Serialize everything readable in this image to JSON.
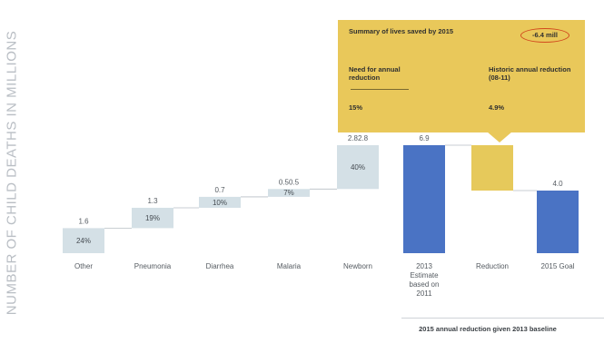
{
  "axis": {
    "ylabel": "NUMBER OF CHILD DEATHS IN MILLIONS"
  },
  "summary": {
    "title": "Summary of lives saved by 2015",
    "total": "-6.4 mill",
    "need_label": "Need for annual reduction",
    "need_value": "15%",
    "historic_label": "Historic annual reduction (08-11)",
    "historic_value": "4.9%"
  },
  "footer": {
    "baseline_note": "2015 annual reduction given 2013 baseline"
  },
  "colors": {
    "increment": "#d4e0e6",
    "estimate": "#4a73c4",
    "reduction": "#e6c95b",
    "goal": "#4a73c4",
    "summary_box": "#e9c85a",
    "highlight_ring": "#d24a1e"
  },
  "chart_data": {
    "type": "bar",
    "subtype": "waterfall",
    "ylabel": "NUMBER OF CHILD DEATHS IN MILLIONS",
    "categories": [
      "Other",
      "Pneumonia",
      "Diarrhea",
      "Malaria",
      "Newborn",
      "2013 Estimate based on 2011",
      "Reduction",
      "2015 Goal"
    ],
    "bars": [
      {
        "category": "Other",
        "kind": "increment",
        "start": 0,
        "end": 1.6,
        "label": "1.6",
        "share": "24%"
      },
      {
        "category": "Pneumonia",
        "kind": "increment",
        "start": 1.6,
        "end": 2.9,
        "label": "1.3",
        "share": "19%"
      },
      {
        "category": "Diarrhea",
        "kind": "increment",
        "start": 2.9,
        "end": 3.6,
        "label": "0.7",
        "share": "10%"
      },
      {
        "category": "Malaria",
        "kind": "increment",
        "start": 3.6,
        "end": 4.1,
        "label": "0.50.5",
        "share": "7%"
      },
      {
        "category": "Newborn",
        "kind": "increment",
        "start": 4.1,
        "end": 6.9,
        "label": "2.82.8",
        "share": "40%"
      },
      {
        "category": "2013 Estimate based on 2011",
        "kind": "total",
        "start": 0,
        "end": 6.9,
        "label": "6.9",
        "share": ""
      },
      {
        "category": "Reduction",
        "kind": "decrement",
        "start": 4.0,
        "end": 6.9,
        "label": "",
        "share": ""
      },
      {
        "category": "2015 Goal",
        "kind": "total",
        "start": 0,
        "end": 4.0,
        "label": "4.0",
        "share": ""
      }
    ],
    "ylim": [
      0,
      6.9
    ],
    "grid": false,
    "legend": "none"
  }
}
